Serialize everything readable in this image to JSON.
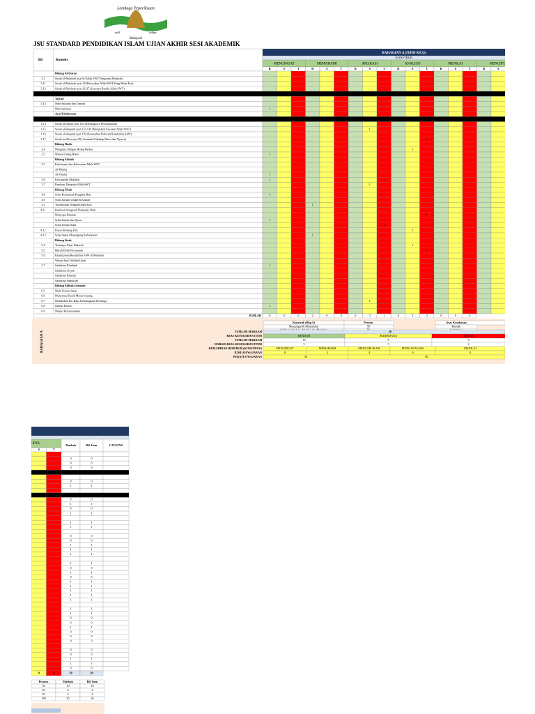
{
  "logo": {
    "top": "Lembaga Peperiksaan",
    "bottom": "Malaysia",
    "left": "adil",
    "right": "cekap"
  },
  "title": "JSU STANDARD PENDIDIKAN ISLAM UJIAN AKHIR SESI AKADEMIK",
  "table": {
    "bil": "Bil",
    "konteks": "Konteks",
    "section": "BAHAGIAN A (ITEM MCQ)",
    "konstruk": "KONSTRUK",
    "constructs": [
      "MENGINGAT",
      "MEMAHAMI",
      "APLIKASI",
      "ANALISIS",
      "MENILAI",
      "MENCIPTA"
    ],
    "levels": [
      "R",
      "S",
      "T"
    ],
    "rows": [
      {
        "konteks": "Bidang Al-Quran",
        "kind": "head"
      },
      {
        "bil": "3.1",
        "konteks": "Surah al-Baiyinah ayat 8 (Allah SWT Pengurnia Hidayah)",
        "cells": [
          null,
          null,
          null,
          null,
          null,
          null,
          null,
          null,
          null,
          null,
          null,
          null,
          null,
          null,
          null
        ],
        "markah": 0,
        "bil_item": 0
      },
      {
        "bil": "3.11",
        "konteks": "Surah al-Baiyinah ayat 18 (Bersyukur Allah SWT Yang Maha Esa)",
        "cells": [
          null,
          null,
          null,
          null,
          null,
          null,
          null,
          null,
          null,
          null,
          null,
          null,
          null,
          null,
          null
        ],
        "markah": 0,
        "bil_item": 0
      },
      {
        "bil": "3.12",
        "konteks": "Surah al-Baiyinah ayat 26-27 (Luasnya Rezeki Allah SWT)",
        "cells": [
          null,
          null,
          null,
          null,
          null,
          null,
          null,
          null,
          null,
          null,
          null,
          null,
          null,
          null,
          null
        ],
        "markah": 0,
        "bil_item": 0
      },
      {
        "kind": "sep"
      },
      {
        "konteks": "Tajwid",
        "kind": "head"
      },
      {
        "bil": "1.13",
        "konteks": "Mim Sakinah dan Tanwin",
        "cells": [
          null,
          null,
          null,
          null,
          null,
          null,
          null,
          null,
          null,
          null,
          null,
          null,
          null,
          null,
          null
        ],
        "markah": 0,
        "bil_item": 0
      },
      {
        "konteks": "Mim Sakinah",
        "cells": [
          1,
          null,
          null,
          null,
          null,
          null,
          null,
          null,
          null,
          null,
          null,
          null,
          null,
          null,
          null
        ],
        "markah": 1,
        "bil_item": 1
      },
      {
        "konteks": "Ayat Kefahaman",
        "kind": "head"
      },
      {
        "kind": "sep"
      },
      {
        "bil": "1.14",
        "konteks": "Surah ali-Imran ayat 102 (Meninginya Persaudaraan)",
        "cells": [
          null,
          null,
          null,
          null,
          null,
          null,
          null,
          null,
          null,
          null,
          null,
          null,
          null,
          null,
          null
        ],
        "markah": 0,
        "bil_item": 0
      },
      {
        "bil": "1.15",
        "konteks": "Surah al-Baqarah ayat 133-136 (Mengikuti Keesaan Allah SWT)",
        "cells": [
          null,
          null,
          null,
          null,
          null,
          null,
          null,
          1,
          null,
          null,
          null,
          null,
          null,
          null,
          null
        ],
        "markah": 1,
        "bil_item": 1
      },
      {
        "bil": "1.16",
        "konteks": "Surah al-Baqarah ayat 159 (Kesesahan Dakwah Rasulullah SAW)",
        "cells": [
          null,
          null,
          null,
          null,
          null,
          null,
          null,
          null,
          null,
          null,
          null,
          null,
          null,
          null,
          null
        ],
        "markah": 0,
        "bil_item": 0
      },
      {
        "bil": "1.17",
        "konteks": "Surah an-Nisa ayat 29 (Amanah Terhadap Harta dan Nyawa)",
        "cells": [
          null,
          null,
          null,
          null,
          null,
          null,
          null,
          null,
          null,
          null,
          null,
          1,
          null,
          null,
          null
        ],
        "markah": 1,
        "bil_item": 1
      },
      {
        "konteks": "Bidang Hadis",
        "kind": "head"
      },
      {
        "bil": "2.4",
        "konteks": "Mengikut Dengan Hidup Berkat",
        "cells": [
          null,
          null,
          null,
          null,
          null,
          null,
          null,
          null,
          null,
          null,
          1,
          null,
          null,
          null,
          null
        ],
        "markah": 1,
        "bil_item": 1
      },
      {
        "bil": "2.5",
        "konteks": "Mencari Yang Halal",
        "cells": [
          1,
          null,
          null,
          null,
          null,
          null,
          null,
          null,
          null,
          null,
          null,
          null,
          null,
          null,
          null
        ],
        "markah": 1,
        "bil_item": 1
      },
      {
        "konteks": "Bidang Akidah",
        "kind": "head"
      },
      {
        "bil": "3.5",
        "konteks": "Kekuasaan dan Kebesaran Allah SWT",
        "cells": [
          null,
          null,
          null,
          null,
          null,
          null,
          null,
          null,
          null,
          null,
          null,
          null,
          null,
          null,
          null
        ],
        "markah": 0,
        "bil_item": 0
      },
      {
        "konteks": "Al-Khaliq",
        "cells": [
          null,
          null,
          null,
          null,
          null,
          null,
          null,
          null,
          null,
          null,
          null,
          null,
          null,
          null,
          null
        ],
        "markah": 0,
        "bil_item": 0
      },
      {
        "konteks": "Al-Ghafur",
        "cells": [
          1,
          null,
          null,
          null,
          null,
          null,
          null,
          null,
          null,
          null,
          null,
          null,
          null,
          null,
          null
        ],
        "markah": 1,
        "bil_item": 1
      },
      {
        "bil": "3.6",
        "konteks": "Kewujudan Malaikat",
        "cells": [
          1,
          null,
          null,
          null,
          null,
          null,
          null,
          null,
          null,
          null,
          null,
          null,
          null,
          null,
          null
        ],
        "markah": 1,
        "bil_item": 1
      },
      {
        "bil": "3.7",
        "konteks": "Panduan Daripada Allah SWT",
        "cells": [
          null,
          null,
          null,
          null,
          null,
          null,
          null,
          1,
          null,
          null,
          null,
          null,
          null,
          null,
          null
        ],
        "markah": 1,
        "bil_item": 1
      },
      {
        "konteks": "Bidang Fikah",
        "kind": "head"
      },
      {
        "bil": "4.8",
        "konteks": "Solat Berjemaah Pengikat Hati",
        "cells": [
          1,
          null,
          null,
          null,
          null,
          null,
          null,
          null,
          null,
          null,
          null,
          null,
          null,
          null,
          null
        ],
        "markah": 1,
        "bil_item": 1
      },
      {
        "bil": "4.9",
        "konteks": "Solat Jumaat wadah Kesatuan",
        "cells": [
          null,
          null,
          null,
          null,
          null,
          null,
          null,
          null,
          null,
          null,
          null,
          null,
          null,
          null,
          null
        ],
        "markah": 0,
        "bil_item": 0
      },
      {
        "bil": "4.1",
        "konteks": "Tayammum Dengan Debu Suci",
        "cells": [
          null,
          null,
          null,
          1,
          null,
          null,
          null,
          null,
          null,
          null,
          null,
          null,
          null,
          null,
          null
        ],
        "markah": 1,
        "bil_item": 1
      },
      {
        "bil": "4.11",
        "konteks": "Rukhsah Anugerah Daripada Allah",
        "cells": [
          null,
          null,
          null,
          null,
          null,
          null,
          null,
          null,
          null,
          null,
          null,
          null,
          null,
          null,
          null
        ],
        "markah": 0,
        "bil_item": 0
      },
      {
        "konteks": "Menyapu Balutan",
        "cells": [
          null,
          null,
          null,
          null,
          null,
          null,
          null,
          null,
          null,
          null,
          null,
          1,
          null,
          null,
          null
        ],
        "markah": 1,
        "bil_item": 1
      },
      {
        "konteks": "Solat Jamak dan Qasar",
        "cells": [
          1,
          null,
          null,
          null,
          null,
          null,
          null,
          null,
          null,
          null,
          null,
          null,
          null,
          null,
          null
        ],
        "markah": 1,
        "bil_item": 1
      },
      {
        "konteks": "Solat Ketika Sakit",
        "cells": [
          null,
          null,
          null,
          null,
          null,
          null,
          null,
          null,
          1,
          null,
          null,
          null,
          null,
          null,
          null
        ],
        "markah": 1,
        "bil_item": 1
      },
      {
        "bil": "4.12",
        "konteks": "Puasa Benteng Diri",
        "cells": [
          null,
          null,
          null,
          null,
          null,
          null,
          null,
          null,
          null,
          null,
          1,
          null,
          null,
          null,
          null
        ],
        "markah": 1,
        "bil_item": 1
      },
      {
        "bil": "4.13",
        "konteks": "Solat Sunat Menangung Keberkatan",
        "cells": [
          null,
          null,
          null,
          1,
          null,
          null,
          null,
          null,
          null,
          null,
          null,
          null,
          null,
          null,
          null
        ],
        "markah": 1,
        "bil_item": 1
      },
      {
        "konteks": "Bidang Sirah",
        "kind": "head"
      },
      {
        "bil": "5.4",
        "konteks": "Terbitnya Fajar Dakwah",
        "cells": [
          null,
          null,
          null,
          null,
          null,
          null,
          null,
          null,
          null,
          null,
          1,
          null,
          null,
          null,
          null
        ],
        "markah": 1,
        "bil_item": 1
      },
      {
        "bil": "5.5",
        "konteks": "Hijrah Detik Bersejarah",
        "cells": [
          null,
          null,
          null,
          null,
          null,
          null,
          null,
          null,
          null,
          null,
          null,
          1,
          null,
          null,
          null
        ],
        "markah": 1,
        "bil_item": 1
      },
      {
        "bil": "5.6",
        "konteks": "Kepimpinan Rasulullah SAW di Madinah",
        "cells": [
          null,
          null,
          null,
          null,
          null,
          null,
          null,
          null,
          null,
          null,
          null,
          null,
          null,
          null,
          null
        ],
        "markah": 0,
        "bil_item": 0
      },
      {
        "konteks": "Wanita Suri Teladan Umat",
        "cells": [
          null,
          null,
          null,
          null,
          null,
          null,
          null,
          null,
          null,
          null,
          null,
          null,
          null,
          null,
          null
        ],
        "markah": 0,
        "bil_item": 0
      },
      {
        "bil": "5.7",
        "konteks": "Saidatina Khadijah",
        "cells": [
          1,
          null,
          null,
          null,
          null,
          null,
          null,
          null,
          null,
          null,
          null,
          null,
          null,
          null,
          null
        ],
        "markah": 1,
        "bil_item": 1
      },
      {
        "konteks": "Saidatina Aisyah",
        "cells": [
          null,
          null,
          null,
          null,
          null,
          null,
          null,
          null,
          null,
          null,
          null,
          null,
          null,
          null,
          null
        ],
        "markah": 0,
        "bil_item": 0
      },
      {
        "konteks": "Saidatina Fatimah",
        "cells": [
          null,
          null,
          null,
          null,
          null,
          null,
          null,
          null,
          null,
          null,
          null,
          null,
          null,
          null,
          null
        ],
        "markah": 0,
        "bil_item": 0
      },
      {
        "konteks": "Saidatina Sumaiyah",
        "cells": [
          null,
          null,
          null,
          null,
          null,
          null,
          null,
          null,
          null,
          null,
          null,
          null,
          null,
          null,
          null
        ],
        "markah": 0,
        "bil_item": 0
      },
      {
        "konteks": "Bidang Akhlak Islamiah",
        "kind": "head"
      },
      {
        "bil": "6.5",
        "konteks": "Malu Perisai Iman",
        "cells": [
          null,
          null,
          null,
          null,
          null,
          null,
          null,
          null,
          null,
          null,
          null,
          null,
          null,
          null,
          null
        ],
        "markah": 0,
        "bil_item": 0
      },
      {
        "bil": "6.6",
        "konteks": "Menyemai Kasih Mesra Sayang",
        "cells": [
          null,
          null,
          null,
          null,
          null,
          null,
          null,
          null,
          null,
          null,
          null,
          null,
          null,
          null,
          null
        ],
        "markah": 0,
        "bil_item": 0
      },
      {
        "bil": "6.7",
        "konteks": "Melakukan Ibu Bapa Kebahagiaan Keluarga",
        "cells": [
          null,
          null,
          null,
          null,
          null,
          null,
          null,
          1,
          null,
          null,
          null,
          null,
          null,
          null,
          null
        ],
        "markah": 1,
        "bil_item": 1
      },
      {
        "bil": "6.8",
        "konteks": "Santun Bicara",
        "cells": [
          1,
          null,
          null,
          null,
          null,
          null,
          null,
          null,
          null,
          null,
          null,
          null,
          null,
          null,
          null
        ],
        "markah": 1,
        "bil_item": 1
      },
      {
        "bil": "6.9",
        "konteks": "Masjid Peristirahatan",
        "cells": [
          null,
          null,
          null,
          null,
          null,
          null,
          null,
          null,
          null,
          null,
          null,
          null,
          null,
          null,
          null
        ],
        "markah": 0,
        "bil_item": 0
      }
    ],
    "jumlah_label": "JUMLAH",
    "jumlah": [
      8,
      0,
      0,
      2,
      0,
      0,
      0,
      3,
      1,
      0,
      3,
      3,
      0,
      0,
      0
    ],
    "markah": "Markah",
    "bil_item": "Bil. Item",
    "catatan": "CATATAN",
    "totals": {
      "S": 0,
      "T": 0,
      "markah": 20,
      "bil_item": 20
    }
  },
  "summary": {
    "side": "BAHAGIAN A",
    "konstruk_table": {
      "header": [
        "Konstruk (Bhg A)",
        "Peratus"
      ],
      "rows": [
        [
          "Mengingat & Memahami",
          50
        ],
        [
          "Aplikasi, Analisis, Menilai dan Mencipta",
          50
        ],
        [
          "JUMLAH",
          100
        ]
      ]
    },
    "aras_table": {
      "header": "Aras Kesukaran",
      "rows": [
        "Rendah",
        "Sederhana",
        "Tinggi",
        "Jumlah"
      ]
    },
    "jumlah_markah_label": "JUMLAH MARKAH",
    "jumlah_markah": 20,
    "aras_label": "ARAS KESUKARAN ITEM",
    "aras": [
      "RENDAH",
      "SEDERHANA",
      "TINGGI"
    ],
    "markah_label": "JUMLAH MARKAH",
    "markah": [
      10,
      6,
      4
    ],
    "nisbah_label": "NISBAH ARAS KESUKARAN ITEM",
    "nisbah": [
      5,
      3,
      2
    ],
    "kemahiran_label": "KEMAHIRAN BERFIKIR (KONSTRUK)",
    "kemahiran": [
      "MENGINGAT",
      "MEMAHAMI",
      "MENGAPLIKASI",
      "MENGANALISIS",
      "MENILAI"
    ],
    "wajaran_label": "JUMLAH WAJARAN",
    "wajaran": [
      8,
      2,
      4,
      6,
      0
    ],
    "peratus_label": "PERATUS WAJARAN",
    "peratus": [
      50,
      50
    ]
  },
  "page2_summary": {
    "header": [
      "Peratus",
      "Markah",
      "Bil. Item"
    ],
    "rows": [
      [
        50,
        10,
        10
      ],
      [
        30,
        6,
        6
      ],
      [
        20,
        4,
        4
      ],
      [
        100,
        20,
        20
      ]
    ]
  }
}
